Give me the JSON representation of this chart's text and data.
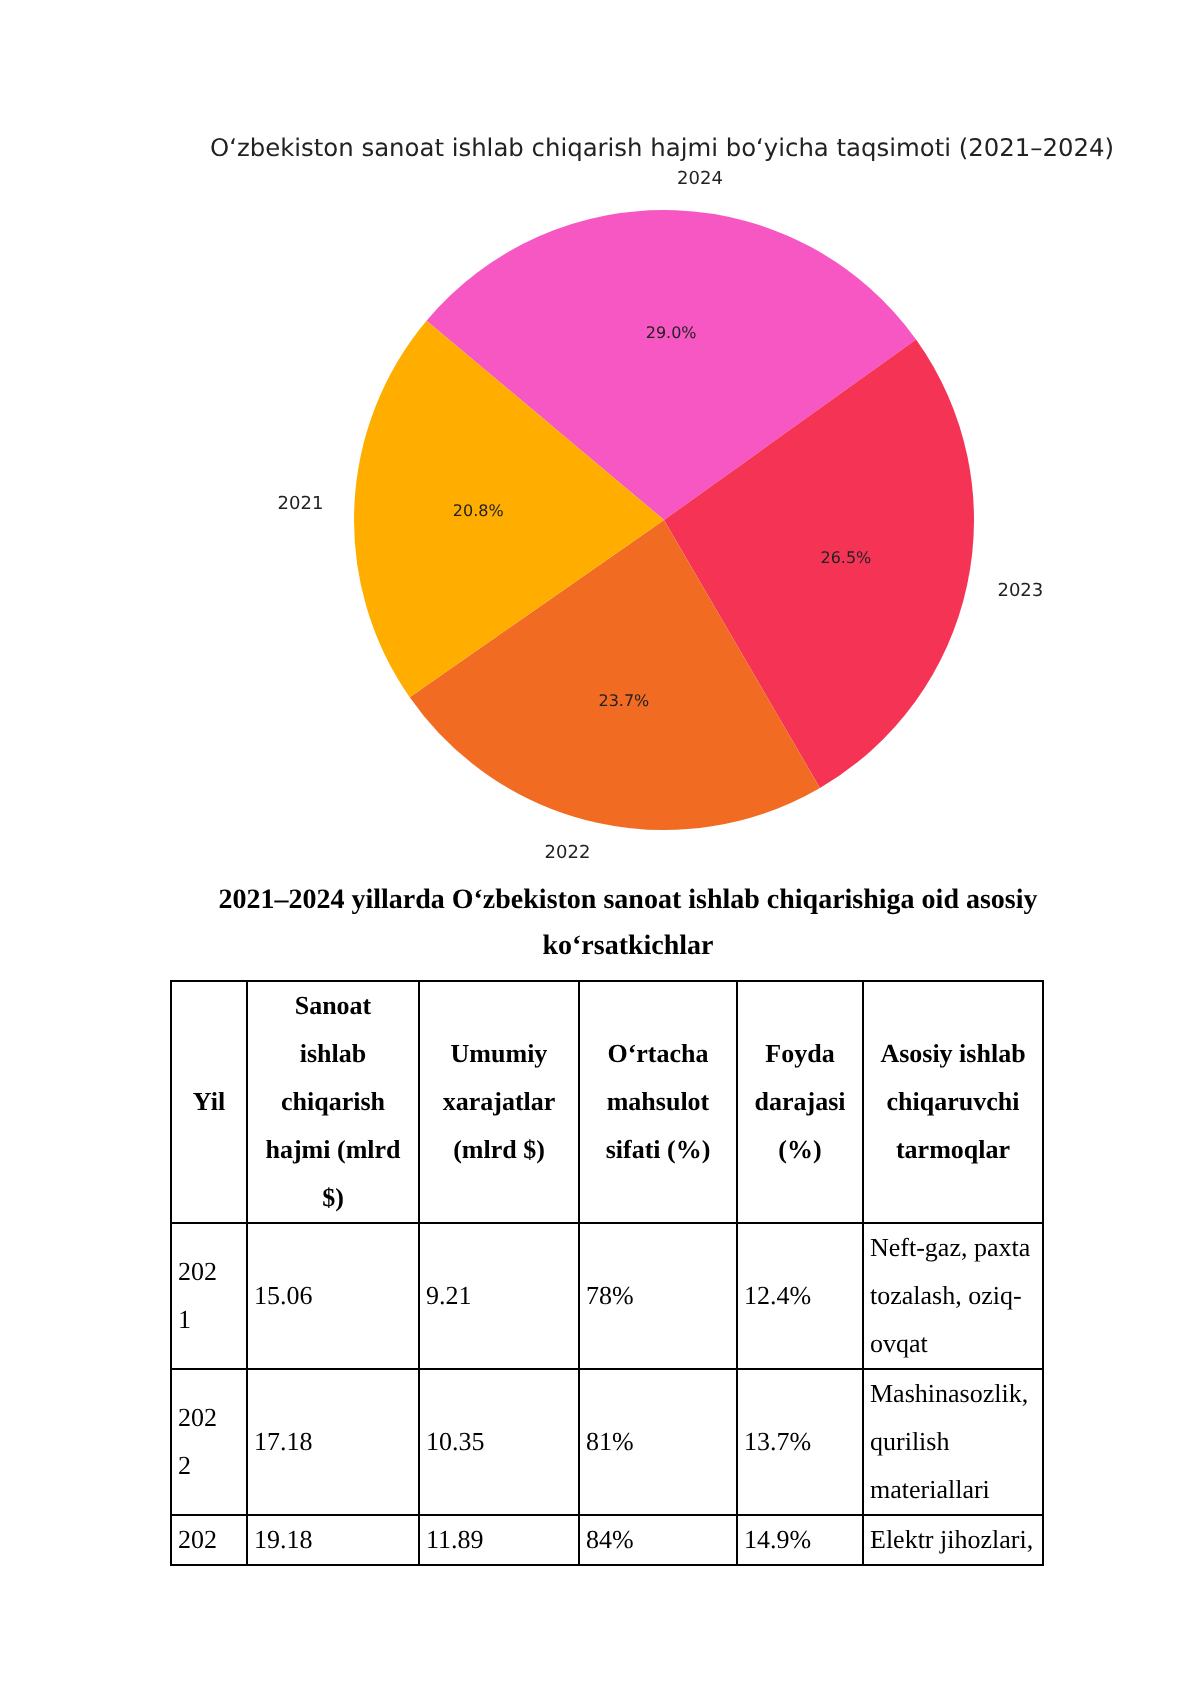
{
  "chart_data": [
    {
      "type": "pie",
      "title": "O‘zbekiston sanoat ishlab chiqarish hajmi bo‘yicha taqsimoti (2021–2024)",
      "categories": [
        "2021",
        "2022",
        "2023",
        "2024"
      ],
      "values": [
        20.8,
        23.7,
        26.5,
        29.0
      ],
      "colors": [
        "#ffae00",
        "#f26b22",
        "#f53355",
        "#f757c2"
      ],
      "value_labels": [
        "20.8%",
        "23.7%",
        "26.5%",
        "29.0%"
      ],
      "legend": false
    },
    {
      "type": "other",
      "title": "2021–2024 yillarda O‘zbekiston sanoat ishlab chiqarishiga oid asosiy ko‘rsatkichlar",
      "categories": [
        "Yil",
        "Sanoat ishlab chiqarish hajmi (mlrd $)",
        "Umumiy xarajatlar (mlrd $)",
        "O‘rtacha mahsulot sifati (%)",
        "Foyda darajasi (%)",
        "Asosiy ishlab chiqaruvchi tarmoqlar"
      ],
      "annotations": [
        "2021",
        "15.06",
        "9.21",
        "78%",
        "12.4%",
        "Neft-gaz, paxta tozalash, oziq-ovqat",
        "2022",
        "17.18",
        "10.35",
        "81%",
        "13.7%",
        "Mashinasozlik, qurilish materiallari",
        "202",
        "19.18",
        "11.89",
        "84%",
        "14.9%",
        "Elektr jihozlari,"
      ]
    }
  ]
}
